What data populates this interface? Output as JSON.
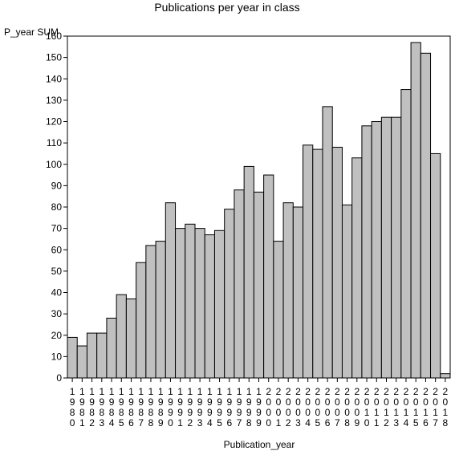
{
  "chart_data": {
    "type": "bar",
    "title": "Publications per year in class",
    "xlabel": "Publication_year",
    "ylabel": "P_year SUM",
    "ylim": [
      0,
      160
    ],
    "yticks": [
      0,
      10,
      20,
      30,
      40,
      50,
      60,
      70,
      80,
      90,
      100,
      110,
      120,
      130,
      140,
      150,
      160
    ],
    "grid": false,
    "colors": {
      "bar_fill": "#c0c0c0",
      "bar_stroke": "#000000",
      "background": "#ffffff"
    },
    "categories": [
      "1980",
      "1981",
      "1982",
      "1983",
      "1984",
      "1985",
      "1986",
      "1987",
      "1988",
      "1989",
      "1990",
      "1991",
      "1992",
      "1993",
      "1994",
      "1995",
      "1996",
      "1997",
      "1998",
      "1999",
      "2000",
      "2001",
      "2002",
      "2003",
      "2004",
      "2005",
      "2006",
      "2007",
      "2008",
      "2009",
      "2010",
      "2011",
      "2012",
      "2013",
      "2014",
      "2015",
      "2016",
      "2017",
      "2018"
    ],
    "values": [
      19,
      15,
      21,
      21,
      28,
      39,
      37,
      54,
      62,
      64,
      82,
      70,
      72,
      70,
      67,
      69,
      79,
      88,
      99,
      87,
      95,
      64,
      82,
      80,
      109,
      107,
      127,
      108,
      81,
      103,
      118,
      120,
      122,
      122,
      135,
      157,
      152,
      105,
      2
    ]
  }
}
